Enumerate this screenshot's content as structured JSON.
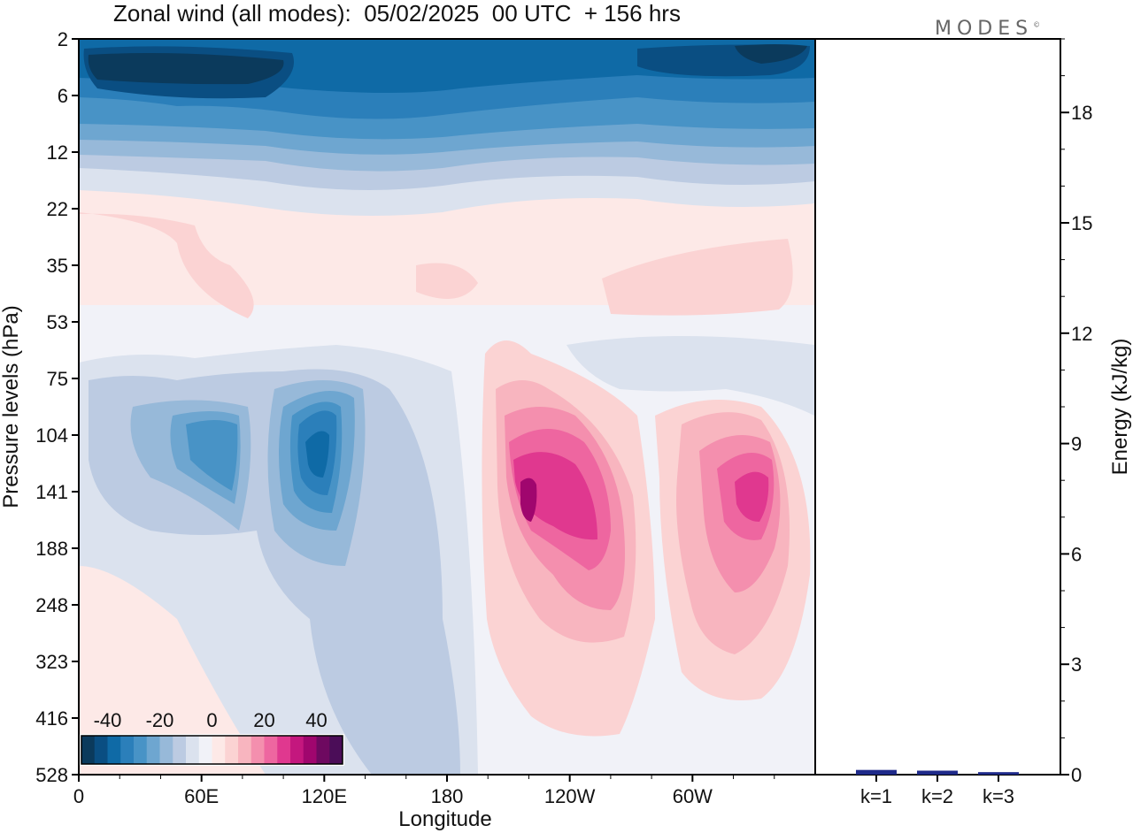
{
  "title": "Zonal wind (all modes):  05/02/2025  00 UTC  + 156 hrs",
  "logo": {
    "text": "MODES",
    "mark": "©"
  },
  "chart_data": [
    {
      "type": "heatmap",
      "title": "Zonal wind (all modes):  05/02/2025  00 UTC  + 156 hrs",
      "xlabel": "Longitude",
      "ylabel": "Pressure levels (hPa)",
      "x_ticks": [
        "0",
        "60E",
        "120E",
        "180",
        "120W",
        "60W"
      ],
      "y_ticks": [
        "2",
        "6",
        "12",
        "22",
        "35",
        "53",
        "75",
        "104",
        "141",
        "188",
        "248",
        "323",
        "416",
        "528"
      ],
      "colorbar": {
        "labels": [
          "-40",
          "-20",
          "0",
          "20",
          "40"
        ],
        "levels": [
          -45,
          -40,
          -35,
          -30,
          -25,
          -20,
          -15,
          -10,
          -5,
          0,
          5,
          10,
          15,
          20,
          25,
          30,
          35,
          40,
          45
        ],
        "colors": [
          "#0b3a5c",
          "#0a4e82",
          "#0f6aa6",
          "#2b7fba",
          "#4893c6",
          "#6ea6d0",
          "#97b9d9",
          "#bccbe2",
          "#dbe2ee",
          "#f1f2f8",
          "#fde9e7",
          "#fbd3d3",
          "#f8b5bf",
          "#f48fae",
          "#ee66a0",
          "#e0388f",
          "#c4177e",
          "#a0066e",
          "#6e0960",
          "#4b0d58"
        ]
      },
      "features": [
        {
          "name": "stratospheric easterlies",
          "lon_range": [
            0,
            360
          ],
          "pressure_range": [
            2,
            12
          ],
          "value": -40
        },
        {
          "name": "easterly jet",
          "lon": 75,
          "pressure": 120,
          "value": -25
        },
        {
          "name": "easterly jet",
          "lon": 118,
          "pressure": 115,
          "value": -30
        },
        {
          "name": "westerly jet",
          "lon": 215,
          "pressure": 141,
          "value": 40
        },
        {
          "name": "westerly jet",
          "lon": 325,
          "pressure": 141,
          "value": 25
        }
      ]
    },
    {
      "type": "bar",
      "ylabel": "Energy (kJ/kg)",
      "categories": [
        "k=1",
        "k=2",
        "k=3"
      ],
      "values": [
        0.08,
        0.06,
        0.02
      ],
      "ylim": [
        0,
        20
      ],
      "y_ticks": [
        "0",
        "3",
        "6",
        "9",
        "12",
        "15",
        "18"
      ],
      "bar_color": "#1f2a8a"
    }
  ]
}
